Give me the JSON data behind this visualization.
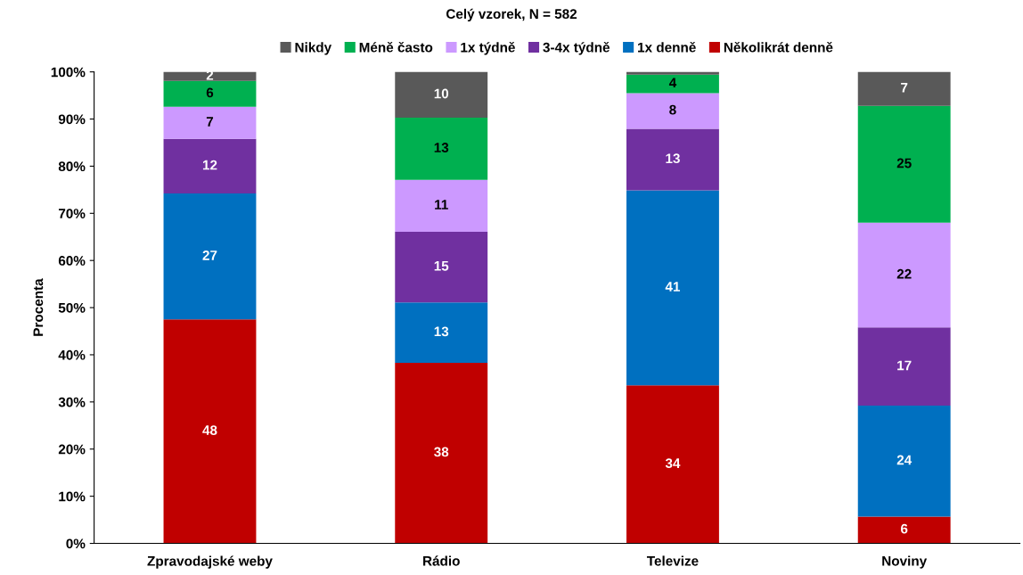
{
  "chart_data": {
    "type": "bar",
    "stacked": true,
    "title": "Celý vzorek, N = 582",
    "ylabel": "Procenta",
    "categories": [
      "Zpravodajské weby",
      "Rádio",
      "Televize",
      "Noviny"
    ],
    "series": [
      {
        "name": "Několikrát denně",
        "color": "#c00000",
        "values": [
          47.5,
          38.3,
          33.5,
          5.7
        ],
        "value_labels": [
          "48",
          "38",
          "34",
          "6"
        ]
      },
      {
        "name": "1x denně",
        "color": "#0070c0",
        "values": [
          26.7,
          12.8,
          41.4,
          23.5
        ],
        "value_labels": [
          "27",
          "13",
          "41",
          "24"
        ]
      },
      {
        "name": "3-4x týdně",
        "color": "#7030a0",
        "values": [
          11.6,
          15.0,
          13.0,
          16.6
        ],
        "value_labels": [
          "12",
          "15",
          "13",
          "17"
        ]
      },
      {
        "name": "1x týdně",
        "color": "#cc99ff",
        "values": [
          6.8,
          11.0,
          7.6,
          22.2
        ],
        "value_labels": [
          "7",
          "11",
          "8",
          "22"
        ]
      },
      {
        "name": "Méně často",
        "color": "#00b050",
        "values": [
          5.5,
          13.2,
          3.9,
          24.8
        ],
        "value_labels": [
          "6",
          "13",
          "4",
          "25"
        ]
      },
      {
        "name": "Nikdy",
        "color": "#595959",
        "values": [
          1.9,
          9.7,
          0.6,
          7.2
        ],
        "value_labels": [
          "2",
          "10",
          null,
          "7"
        ]
      }
    ],
    "ylim": [
      0,
      100
    ],
    "yticks": [
      {
        "value": 0,
        "label": "0%"
      },
      {
        "value": 10,
        "label": "10%"
      },
      {
        "value": 20,
        "label": "20%"
      },
      {
        "value": 30,
        "label": "30%"
      },
      {
        "value": 40,
        "label": "40%"
      },
      {
        "value": 50,
        "label": "50%"
      },
      {
        "value": 60,
        "label": "60%"
      },
      {
        "value": 70,
        "label": "70%"
      },
      {
        "value": 80,
        "label": "80%"
      },
      {
        "value": 90,
        "label": "90%"
      },
      {
        "value": 100,
        "label": "100%"
      }
    ],
    "grid": false,
    "legend": "top"
  }
}
